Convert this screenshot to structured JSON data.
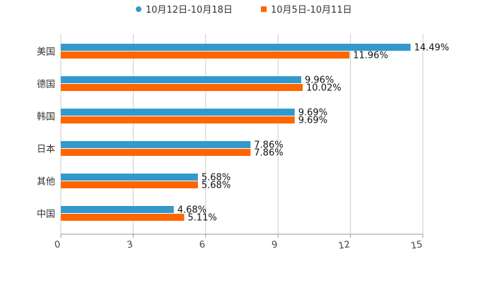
{
  "chart_data": {
    "type": "bar",
    "orientation": "horizontal",
    "title": "",
    "xlabel": "",
    "ylabel": "",
    "xlim": [
      0,
      15
    ],
    "x_ticks": [
      0,
      3,
      6,
      9,
      12,
      15
    ],
    "grid": "vertical",
    "legend_position": "top-center",
    "categories": [
      "美国",
      "德国",
      "韩国",
      "日本",
      "其他",
      "中国"
    ],
    "series": [
      {
        "name": "10月12日-10月18日",
        "color": "#3399cc",
        "values": [
          14.49,
          9.96,
          9.69,
          7.86,
          5.68,
          4.68
        ],
        "labels": [
          "14.49%",
          "9.96%",
          "9.69%",
          "7.86%",
          "5.68%",
          "4.68%"
        ]
      },
      {
        "name": "10月5日-10月11日",
        "color": "#ff6600",
        "values": [
          11.96,
          10.02,
          9.69,
          7.86,
          5.68,
          5.11
        ],
        "labels": [
          "11.96%",
          "10.02%",
          "9.69%",
          "7.86%",
          "5.68%",
          "5.11%"
        ]
      }
    ]
  }
}
